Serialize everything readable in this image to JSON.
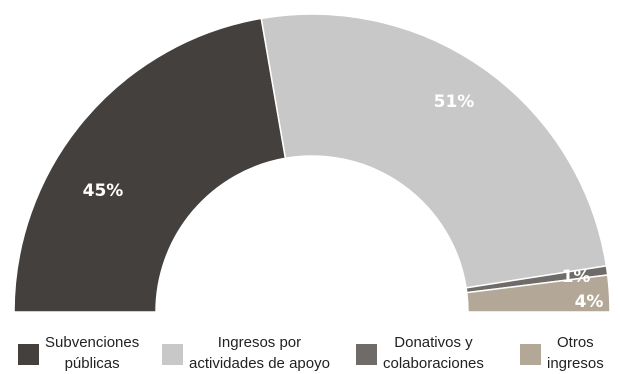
{
  "chart_data": {
    "type": "pie",
    "variant": "semicircle-donut",
    "categories": [
      "Subvenciones\npúblicas",
      "Ingresos por\nactividades de apoyo",
      "Donativos y\ncolaboraciones",
      "Otros\ningresos"
    ],
    "values": [
      45,
      51,
      1,
      4
    ],
    "data_labels": [
      "45%",
      "51%",
      "1%",
      "4%"
    ],
    "colors": [
      "#43403e",
      "#c8c8c8",
      "#6f6b68",
      "#b3a898"
    ],
    "label_colors": [
      "#ffffff",
      "#ffffff",
      "#ffffff",
      "#ffffff"
    ],
    "legend_position": "bottom"
  }
}
